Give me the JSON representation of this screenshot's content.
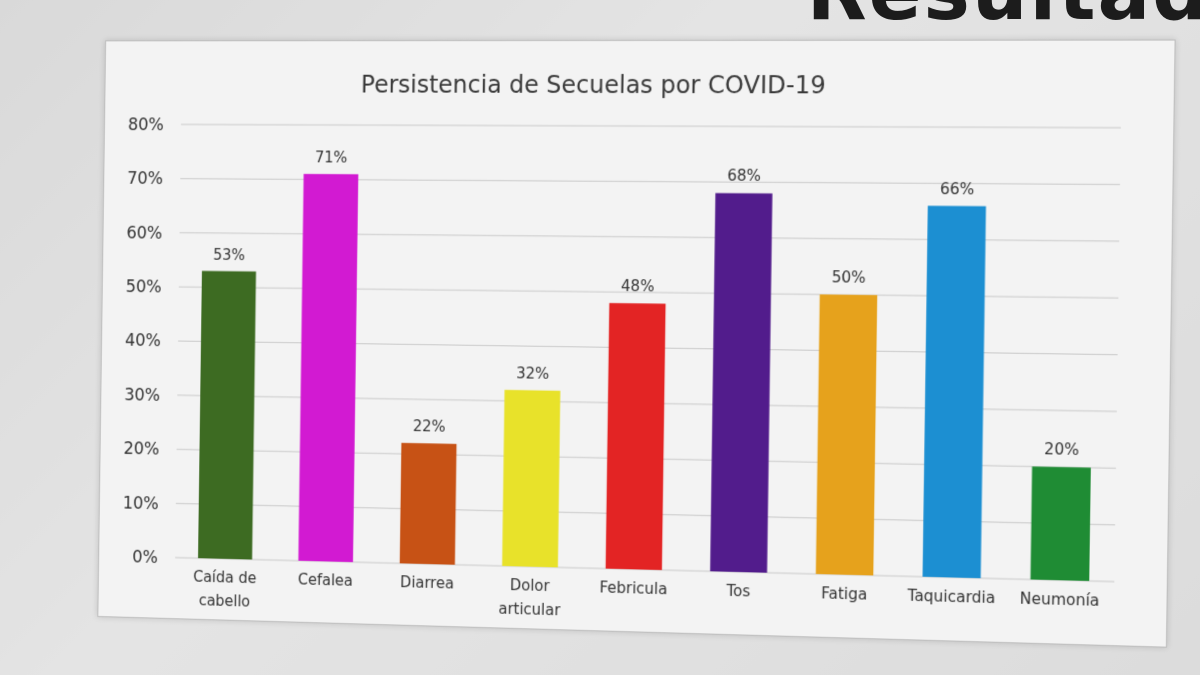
{
  "corner_text": "Resultad",
  "chart_data": {
    "type": "bar",
    "title": "Persistencia de Secuelas por COVID-19",
    "xlabel": "",
    "ylabel": "",
    "ylim": [
      0,
      80
    ],
    "yticks": [
      "0%",
      "10%",
      "20%",
      "30%",
      "40%",
      "50%",
      "60%",
      "70%",
      "80%"
    ],
    "grid": true,
    "legend": "none",
    "categories": [
      [
        "Caída de",
        "cabello"
      ],
      [
        "Cefalea"
      ],
      [
        "Diarrea"
      ],
      [
        "Dolor",
        "articular"
      ],
      [
        "Febricula"
      ],
      [
        "Tos"
      ],
      [
        "Fatiga"
      ],
      [
        "Taquicardia"
      ],
      [
        "Neumonía"
      ]
    ],
    "values": [
      53,
      71,
      22,
      32,
      48,
      68,
      50,
      66,
      20
    ],
    "data_labels": [
      "53%",
      "71%",
      "22%",
      "32%",
      "48%",
      "68%",
      "50%",
      "66%",
      "20%"
    ],
    "colors": [
      "#3d6b22",
      "#d21ad2",
      "#c75215",
      "#e8e22a",
      "#e32424",
      "#521c8c",
      "#e6a21c",
      "#1c8fd2",
      "#1f8c34"
    ]
  }
}
